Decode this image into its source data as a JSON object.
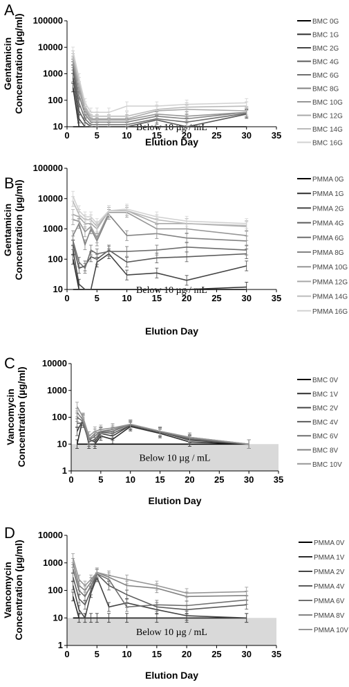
{
  "chart_data": [
    {
      "panel": "A",
      "type": "line",
      "ylabel": [
        "Gentamicin",
        "Concentration (µg/ml)"
      ],
      "xlabel": "Elution Day",
      "yscale": "log",
      "ylim": [
        10,
        100000
      ],
      "yticks": [
        10,
        100,
        1000,
        10000,
        100000
      ],
      "xlim": [
        0,
        35
      ],
      "xticks": [
        0,
        5,
        10,
        15,
        20,
        25,
        30,
        35
      ],
      "shaded_label": "Below 10 µg / mL",
      "x": [
        1,
        2,
        3,
        4,
        5,
        7,
        10,
        15,
        20,
        30
      ],
      "series": [
        {
          "name": "BMC 0G",
          "color": "#000000",
          "values": [
            10,
            10,
            10,
            10,
            10,
            10,
            10,
            10,
            10,
            10
          ]
        },
        {
          "name": "BMC 1G",
          "color": "#2b2b2b",
          "values": [
            300,
            10,
            10,
            10,
            10,
            10,
            10,
            10,
            10,
            10
          ]
        },
        {
          "name": "BMC 2G",
          "color": "#444444",
          "values": [
            700,
            20,
            10,
            10,
            10,
            10,
            10,
            10,
            10,
            10
          ]
        },
        {
          "name": "BMC 4G",
          "color": "#5a5a5a",
          "values": [
            1500,
            40,
            15,
            10,
            10,
            10,
            10,
            18,
            10,
            30
          ]
        },
        {
          "name": "BMC 6G",
          "color": "#6e6e6e",
          "values": [
            2000,
            80,
            20,
            12,
            12,
            12,
            12,
            20,
            15,
            32
          ]
        },
        {
          "name": "BMC 8G",
          "color": "#828282",
          "values": [
            2500,
            150,
            30,
            15,
            15,
            15,
            15,
            25,
            20,
            35
          ]
        },
        {
          "name": "BMC 10G",
          "color": "#969696",
          "values": [
            3000,
            250,
            40,
            18,
            18,
            18,
            18,
            30,
            25,
            35
          ]
        },
        {
          "name": "BMC 12G",
          "color": "#a8a8a8",
          "values": [
            4000,
            350,
            50,
            20,
            20,
            20,
            20,
            40,
            45,
            40
          ]
        },
        {
          "name": "BMC 14G",
          "color": "#bbbbbb",
          "values": [
            5000,
            500,
            60,
            25,
            25,
            25,
            25,
            45,
            55,
            60
          ]
        },
        {
          "name": "BMC 16G",
          "color": "#d2d2d2",
          "values": [
            7000,
            700,
            80,
            35,
            35,
            35,
            60,
            60,
            70,
            80
          ]
        }
      ]
    },
    {
      "panel": "B",
      "type": "line",
      "ylabel": [
        "Gentamicin",
        "Concentration (µg/ml)"
      ],
      "xlabel": "Elution Day",
      "yscale": "log",
      "ylim": [
        10,
        100000
      ],
      "yticks": [
        10,
        100,
        1000,
        10000,
        100000
      ],
      "xlim": [
        0,
        35
      ],
      "xticks": [
        0,
        5,
        10,
        15,
        20,
        25,
        30,
        35
      ],
      "shaded_label": "Below 10 µg / mL",
      "x": [
        1,
        2,
        3,
        4,
        5,
        7,
        10,
        15,
        20,
        30
      ],
      "series": [
        {
          "name": "PMMA 0G",
          "color": "#000000",
          "values": [
            10,
            10,
            10,
            10,
            10,
            10,
            10,
            10,
            10,
            10
          ]
        },
        {
          "name": "PMMA 1G",
          "color": "#2b2b2b",
          "values": [
            100,
            10,
            10,
            10,
            10,
            10,
            10,
            10,
            10,
            12
          ]
        },
        {
          "name": "PMMA 2G",
          "color": "#444444",
          "values": [
            200,
            15,
            10,
            10,
            80,
            150,
            30,
            35,
            20,
            60
          ]
        },
        {
          "name": "PMMA 4G",
          "color": "#5a5a5a",
          "values": [
            300,
            50,
            60,
            120,
            100,
            200,
            80,
            110,
            120,
            150
          ]
        },
        {
          "name": "PMMA 6G",
          "color": "#6e6e6e",
          "values": [
            400,
            80,
            50,
            200,
            150,
            180,
            180,
            200,
            250,
            200
          ]
        },
        {
          "name": "PMMA 8G",
          "color": "#828282",
          "values": [
            600,
            1500,
            300,
            1000,
            400,
            3000,
            600,
            700,
            500,
            400
          ]
        },
        {
          "name": "PMMA 10G",
          "color": "#969696",
          "values": [
            2000,
            1800,
            800,
            1200,
            500,
            3500,
            3500,
            1000,
            1000,
            600
          ]
        },
        {
          "name": "PMMA 12G",
          "color": "#a8a8a8",
          "values": [
            3000,
            2500,
            1500,
            1500,
            1000,
            4000,
            4000,
            1500,
            1500,
            1200
          ]
        },
        {
          "name": "PMMA 14G",
          "color": "#bbbbbb",
          "values": [
            8000,
            3000,
            2000,
            2000,
            1200,
            4000,
            4000,
            2000,
            1500,
            1300
          ]
        },
        {
          "name": "PMMA 16G",
          "color": "#d2d2d2",
          "values": [
            12000,
            4000,
            2500,
            2500,
            1500,
            4000,
            4500,
            2500,
            1800,
            1500
          ]
        }
      ]
    },
    {
      "panel": "C",
      "type": "line",
      "ylabel": [
        "Vancomycin",
        "Concentration (µg/ml)"
      ],
      "xlabel": "Elution Day",
      "yscale": "log",
      "ylim": [
        1,
        10000
      ],
      "yticks": [
        1,
        10,
        100,
        1000,
        10000
      ],
      "xlim": [
        0,
        35
      ],
      "xticks": [
        0,
        5,
        10,
        15,
        20,
        25,
        30,
        35
      ],
      "shaded_label": "Below 10 µg / mL",
      "x": [
        1,
        2,
        3,
        4,
        5,
        7,
        10,
        15,
        20,
        30
      ],
      "series": [
        {
          "name": "BMC 0V",
          "color": "#000000",
          "values": [
            10,
            10,
            10,
            10,
            10,
            10,
            10,
            10,
            10,
            10
          ]
        },
        {
          "name": "BMC 1V",
          "color": "#2b2b2b",
          "values": [
            10,
            90,
            10,
            10,
            20,
            15,
            45,
            25,
            12,
            10
          ]
        },
        {
          "name": "BMC 2V",
          "color": "#444444",
          "values": [
            30,
            80,
            15,
            12,
            25,
            20,
            50,
            28,
            14,
            10
          ]
        },
        {
          "name": "BMC 4V",
          "color": "#5a5a5a",
          "values": [
            60,
            60,
            12,
            15,
            28,
            25,
            50,
            28,
            15,
            10
          ]
        },
        {
          "name": "BMC 6V",
          "color": "#6e6e6e",
          "values": [
            100,
            70,
            14,
            20,
            30,
            30,
            55,
            30,
            16,
            10
          ]
        },
        {
          "name": "BMC 8V",
          "color": "#828282",
          "values": [
            150,
            80,
            15,
            25,
            30,
            35,
            55,
            30,
            18,
            10
          ]
        },
        {
          "name": "BMC 10V",
          "color": "#969696",
          "values": [
            250,
            100,
            20,
            30,
            35,
            40,
            55,
            30,
            18,
            10
          ]
        }
      ]
    },
    {
      "panel": "D",
      "type": "line",
      "ylabel": [
        "Vancomycin",
        "Concentration (µg/ml)"
      ],
      "xlabel": "Elution Day",
      "yscale": "log",
      "ylim": [
        1,
        10000
      ],
      "yticks": [
        1,
        10,
        100,
        1000,
        10000
      ],
      "xlim": [
        0,
        35
      ],
      "xticks": [
        0,
        5,
        10,
        15,
        20,
        25,
        30,
        35
      ],
      "shaded_label": "Below 10 µg / mL",
      "x": [
        1,
        2,
        3,
        4,
        5,
        7,
        10,
        15,
        20,
        30
      ],
      "series": [
        {
          "name": "PMMA 0V",
          "color": "#000000",
          "values": [
            10,
            10,
            10,
            10,
            10,
            10,
            10,
            10,
            10,
            10
          ]
        },
        {
          "name": "PMMA 1V",
          "color": "#2b2b2b",
          "values": [
            60,
            10,
            10,
            10,
            10,
            10,
            10,
            10,
            10,
            10
          ]
        },
        {
          "name": "PMMA 2V",
          "color": "#444444",
          "values": [
            150,
            20,
            10,
            80,
            300,
            25,
            35,
            20,
            12,
            10
          ]
        },
        {
          "name": "PMMA 4V",
          "color": "#5a5a5a",
          "values": [
            300,
            50,
            30,
            100,
            400,
            150,
            70,
            25,
            20,
            30
          ]
        },
        {
          "name": "PMMA 6V",
          "color": "#6e6e6e",
          "values": [
            600,
            100,
            60,
            150,
            400,
            250,
            25,
            30,
            28,
            45
          ]
        },
        {
          "name": "PMMA 8V",
          "color": "#828282",
          "values": [
            1000,
            150,
            100,
            200,
            450,
            300,
            150,
            120,
            60,
            65
          ]
        },
        {
          "name": "PMMA 10V",
          "color": "#969696",
          "values": [
            1500,
            250,
            150,
            250,
            450,
            350,
            250,
            150,
            80,
            90
          ]
        }
      ]
    }
  ]
}
